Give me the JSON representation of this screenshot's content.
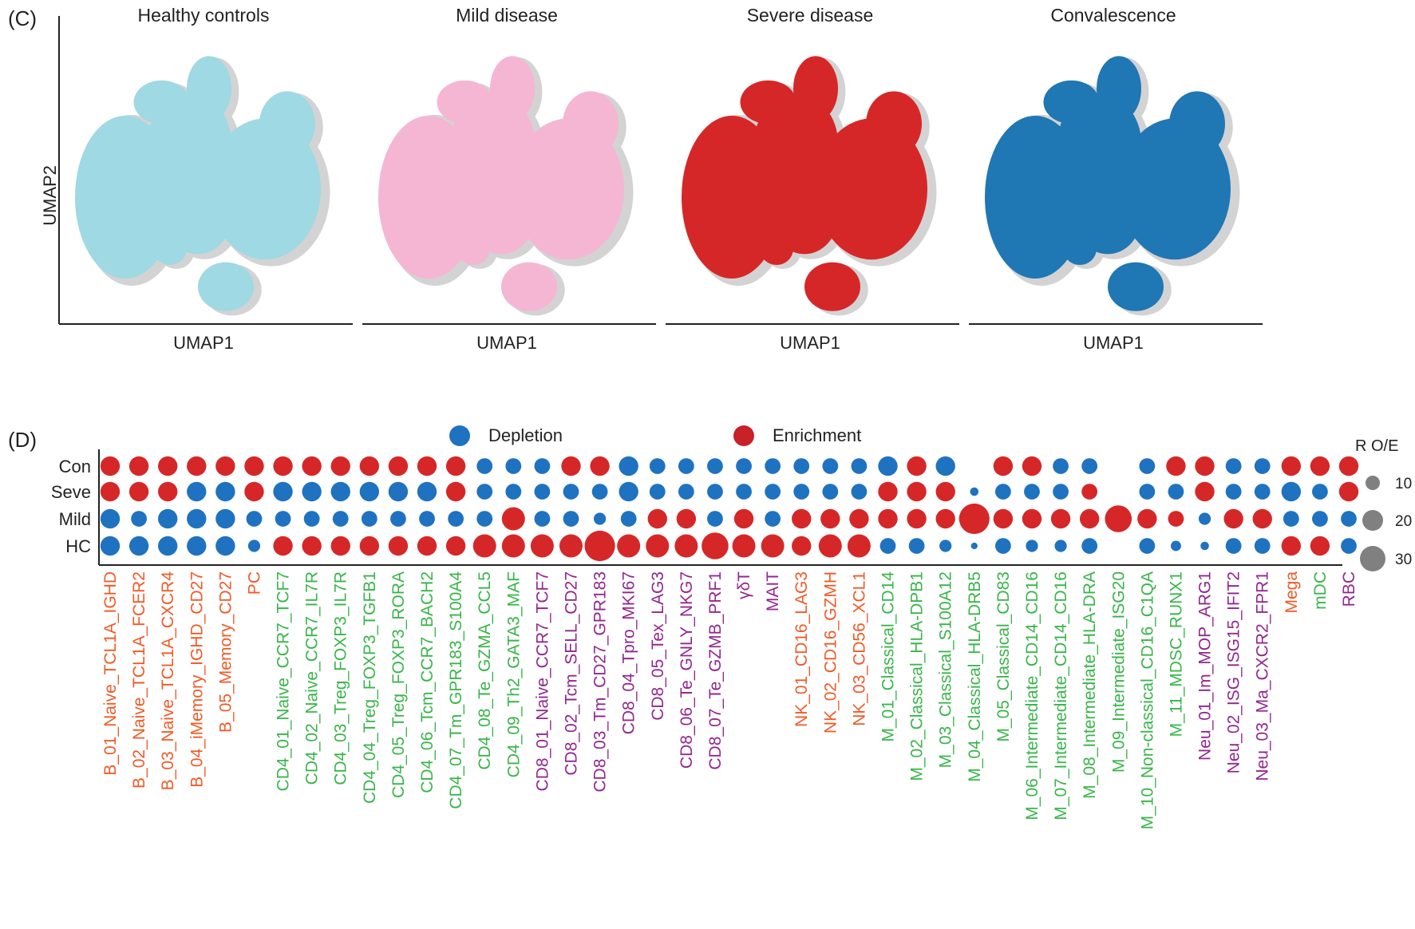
{
  "panel_c": {
    "label": "(C)",
    "ylabel": "UMAP2",
    "xlabel": "UMAP1",
    "panels": [
      {
        "title": "Healthy controls",
        "color": "#9fd9e3"
      },
      {
        "title": "Mild disease",
        "color": "#f4b6d2"
      },
      {
        "title": "Severe disease",
        "color": "#d62728"
      },
      {
        "title": "Convalescence",
        "color": "#1f77b4"
      }
    ],
    "background_color": "#d3d3d3"
  },
  "panel_d": {
    "label": "(D)",
    "legend": {
      "depletion": {
        "label": "Depletion",
        "color": "#1f72c0"
      },
      "enrichment": {
        "label": "Enrichment",
        "color": "#d62728"
      }
    },
    "size_legend": {
      "title": "R O/E",
      "values": [
        "10",
        "20",
        "30"
      ],
      "color": "#808080"
    },
    "group_colors": {
      "B": "#f05a28",
      "T4": "#39b54a",
      "T8": "#92278f",
      "NK": "#f05a28",
      "M": "#39b54a",
      "Neu": "#92278f"
    }
  },
  "chart_data": {
    "type": "bubble",
    "rows": [
      "Con",
      "Seve",
      "Mild",
      "HC"
    ],
    "size_scale": {
      "values": [
        10,
        20,
        30
      ],
      "legend_title": "R O/E"
    },
    "categories": [
      {
        "name": "B_01_Naive_TCL1A_IGHD",
        "group": "B",
        "sizes": [
          4,
          4,
          4,
          4
        ],
        "states": [
          "E",
          "E",
          "D",
          "D"
        ]
      },
      {
        "name": "B_02_Naive_TCL1A_FCER2",
        "group": "B",
        "sizes": [
          4,
          4,
          3,
          4
        ],
        "states": [
          "E",
          "E",
          "D",
          "D"
        ]
      },
      {
        "name": "B_03_Naive_TCL1A_CXCR4",
        "group": "B",
        "sizes": [
          4,
          4,
          4,
          4
        ],
        "states": [
          "E",
          "E",
          "D",
          "D"
        ]
      },
      {
        "name": "B_04_iMemory_IGHD_CD27",
        "group": "B",
        "sizes": [
          4,
          4,
          4,
          4
        ],
        "states": [
          "E",
          "D",
          "D",
          "D"
        ]
      },
      {
        "name": "B_05_Memory_CD27",
        "group": "B",
        "sizes": [
          4,
          4,
          4,
          4
        ],
        "states": [
          "E",
          "D",
          "D",
          "D"
        ]
      },
      {
        "name": "PC",
        "group": "B",
        "sizes": [
          4,
          4,
          3,
          2
        ],
        "states": [
          "E",
          "E",
          "D",
          "D"
        ]
      },
      {
        "name": "CD4_01_Naive_CCR7_TCF7",
        "group": "T4",
        "sizes": [
          4,
          4,
          3,
          4
        ],
        "states": [
          "E",
          "D",
          "D",
          "E"
        ]
      },
      {
        "name": "CD4_02_Naive_CCR7_IL7R",
        "group": "T4",
        "sizes": [
          4,
          4,
          3,
          4
        ],
        "states": [
          "E",
          "D",
          "D",
          "E"
        ]
      },
      {
        "name": "CD4_03_Treg_FOXP3_IL7R",
        "group": "T4",
        "sizes": [
          4,
          4,
          3,
          4
        ],
        "states": [
          "E",
          "D",
          "D",
          "E"
        ]
      },
      {
        "name": "CD4_04_Treg_FOXP3_TGFB1",
        "group": "T4",
        "sizes": [
          4,
          4,
          3,
          4
        ],
        "states": [
          "E",
          "D",
          "D",
          "E"
        ]
      },
      {
        "name": "CD4_05_Treg_FOXP3_RORA",
        "group": "T4",
        "sizes": [
          4,
          4,
          3,
          4
        ],
        "states": [
          "E",
          "D",
          "D",
          "E"
        ]
      },
      {
        "name": "CD4_06_Tcm_CCR7_BACH2",
        "group": "T4",
        "sizes": [
          4,
          4,
          3,
          4
        ],
        "states": [
          "E",
          "D",
          "D",
          "E"
        ]
      },
      {
        "name": "CD4_07_Tm_GPR183_S100A4",
        "group": "T4",
        "sizes": [
          4,
          4,
          3,
          4
        ],
        "states": [
          "E",
          "E",
          "D",
          "E"
        ]
      },
      {
        "name": "CD4_08_Te_GZMA_CCL5",
        "group": "T4",
        "sizes": [
          3,
          3,
          3,
          5
        ],
        "states": [
          "D",
          "D",
          "D",
          "E"
        ]
      },
      {
        "name": "CD4_09_Th2_GATA3_MAF",
        "group": "T4",
        "sizes": [
          3,
          3,
          5,
          5
        ],
        "states": [
          "D",
          "D",
          "E",
          "E"
        ]
      },
      {
        "name": "CD8_01_Naive_CCR7_TCF7",
        "group": "T8",
        "sizes": [
          3,
          3,
          3,
          5
        ],
        "states": [
          "D",
          "D",
          "D",
          "E"
        ]
      },
      {
        "name": "CD8_02_Tcm_SELL_CD27",
        "group": "T8",
        "sizes": [
          4,
          3,
          3,
          5
        ],
        "states": [
          "E",
          "D",
          "D",
          "E"
        ]
      },
      {
        "name": "CD8_03_Tm_CD27_GPR183",
        "group": "T8",
        "sizes": [
          4,
          3,
          2,
          7
        ],
        "states": [
          "E",
          "D",
          "D",
          "E"
        ]
      },
      {
        "name": "CD8_04_Tpro_MKI67",
        "group": "T8",
        "sizes": [
          4,
          4,
          3,
          5
        ],
        "states": [
          "D",
          "D",
          "D",
          "E"
        ]
      },
      {
        "name": "CD8_05_Tex_LAG3",
        "group": "T8",
        "sizes": [
          3,
          3,
          4,
          5
        ],
        "states": [
          "D",
          "D",
          "E",
          "E"
        ]
      },
      {
        "name": "CD8_06_Te_GNLY_NKG7",
        "group": "T8",
        "sizes": [
          3,
          3,
          4,
          5
        ],
        "states": [
          "D",
          "D",
          "E",
          "E"
        ]
      },
      {
        "name": "CD8_07_Te_GZMB_PRF1",
        "group": "T8",
        "sizes": [
          3,
          3,
          3,
          6
        ],
        "states": [
          "D",
          "D",
          "D",
          "E"
        ]
      },
      {
        "name": "γδT",
        "group": "T8",
        "sizes": [
          3,
          3,
          4,
          5
        ],
        "states": [
          "D",
          "D",
          "E",
          "E"
        ]
      },
      {
        "name": "MAIT",
        "group": "T8",
        "sizes": [
          3,
          3,
          3,
          5
        ],
        "states": [
          "D",
          "D",
          "D",
          "E"
        ]
      },
      {
        "name": "NK_01_CD16_LAG3",
        "group": "NK",
        "sizes": [
          3,
          3,
          4,
          4
        ],
        "states": [
          "D",
          "D",
          "E",
          "E"
        ]
      },
      {
        "name": "NK_02_CD16_GZMH",
        "group": "NK",
        "sizes": [
          3,
          3,
          4,
          5
        ],
        "states": [
          "D",
          "D",
          "E",
          "E"
        ]
      },
      {
        "name": "NK_03_CD56_XCL1",
        "group": "NK",
        "sizes": [
          3,
          3,
          4,
          5
        ],
        "states": [
          "D",
          "D",
          "E",
          "E"
        ]
      },
      {
        "name": "M_01_Classical_CD14",
        "group": "M",
        "sizes": [
          4,
          4,
          4,
          3
        ],
        "states": [
          "D",
          "E",
          "E",
          "D"
        ]
      },
      {
        "name": "M_02_Classical_HLA-DPB1",
        "group": "M",
        "sizes": [
          4,
          4,
          4,
          3
        ],
        "states": [
          "E",
          "E",
          "E",
          "D"
        ]
      },
      {
        "name": "M_03_Classical_S100A12",
        "group": "M",
        "sizes": [
          4,
          4,
          4,
          2
        ],
        "states": [
          "D",
          "E",
          "E",
          "D"
        ]
      },
      {
        "name": "M_04_Classical_HLA-DRB5",
        "group": "M",
        "sizes": [
          0,
          1,
          7,
          0.5
        ],
        "states": [
          "D",
          "D",
          "E",
          "D"
        ]
      },
      {
        "name": "M_05_Classical_CD83",
        "group": "M",
        "sizes": [
          4,
          3,
          4,
          3
        ],
        "states": [
          "E",
          "D",
          "E",
          "D"
        ]
      },
      {
        "name": "M_06_Intermediate_CD14_CD16",
        "group": "M",
        "sizes": [
          4,
          3,
          4,
          2
        ],
        "states": [
          "E",
          "D",
          "E",
          "D"
        ]
      },
      {
        "name": "M_07_Intermediate_CD14_CD16",
        "group": "M",
        "sizes": [
          3,
          3,
          4,
          2
        ],
        "states": [
          "D",
          "D",
          "E",
          "D"
        ]
      },
      {
        "name": "M_08_Intermediate_HLA-DRA",
        "group": "M",
        "sizes": [
          3,
          3,
          4,
          3
        ],
        "states": [
          "D",
          "E",
          "E",
          "D"
        ]
      },
      {
        "name": "M_09_Intermediate_ISG20",
        "group": "M",
        "sizes": [
          0,
          0,
          6,
          0
        ],
        "states": [
          "D",
          "D",
          "E",
          "D"
        ]
      },
      {
        "name": "M_10_Non-classical_CD16_C1QA",
        "group": "M",
        "sizes": [
          3,
          3,
          4,
          3
        ],
        "states": [
          "D",
          "D",
          "E",
          "D"
        ]
      },
      {
        "name": "M_11_MDSC_RUNX1",
        "group": "M",
        "sizes": [
          4,
          3,
          3,
          1.5
        ],
        "states": [
          "E",
          "D",
          "E",
          "D"
        ]
      },
      {
        "name": "Neu_01_Im_MOP_ARG1",
        "group": "Neu",
        "sizes": [
          4,
          4,
          2,
          1
        ],
        "states": [
          "E",
          "E",
          "D",
          "D"
        ]
      },
      {
        "name": "Neu_02_ISG_ISG15_IFIT2",
        "group": "Neu",
        "sizes": [
          3,
          3,
          4,
          3
        ],
        "states": [
          "D",
          "D",
          "E",
          "D"
        ]
      },
      {
        "name": "Neu_03_Ma_CXCR2_FPR1",
        "group": "Neu",
        "sizes": [
          3,
          3,
          4,
          3
        ],
        "states": [
          "D",
          "D",
          "E",
          "D"
        ]
      },
      {
        "name": "Mega",
        "group": "B",
        "sizes": [
          4,
          4,
          3,
          4
        ],
        "states": [
          "E",
          "D",
          "D",
          "E"
        ]
      },
      {
        "name": "mDC",
        "group": "M",
        "sizes": [
          4,
          3,
          3,
          4
        ],
        "states": [
          "E",
          "D",
          "D",
          "E"
        ]
      },
      {
        "name": "RBC",
        "group": "Neu",
        "sizes": [
          4,
          4,
          3,
          3
        ],
        "states": [
          "E",
          "E",
          "D",
          "D"
        ]
      }
    ]
  }
}
